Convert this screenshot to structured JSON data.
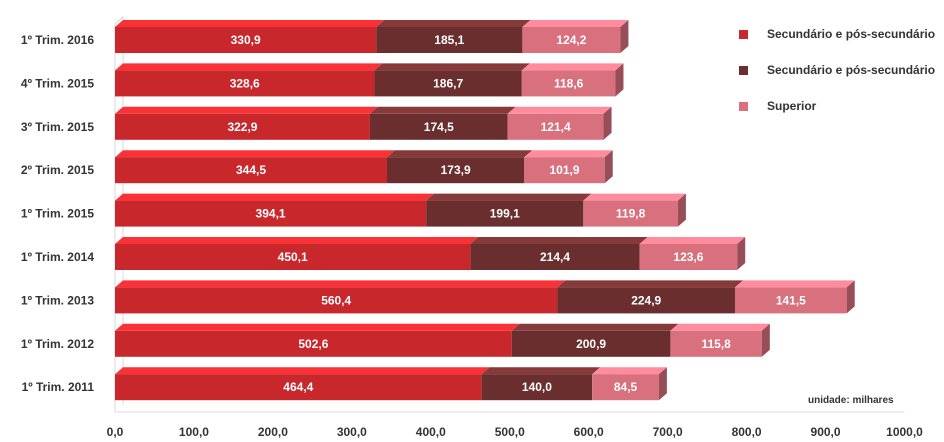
{
  "chart_data": {
    "type": "bar",
    "orientation": "horizontal",
    "stacked": true,
    "style": "3d",
    "categories": [
      "1º Trim. 2016",
      "4º Trim. 2015",
      "3º Trim. 2015",
      "2º Trim. 2015",
      "1º Trim. 2015",
      "1º Trim. 2014",
      "1º Trim. 2013",
      "1º Trim. 2012",
      "1º Trim. 2011"
    ],
    "series": [
      {
        "name": "Secundário e pós-secundário",
        "color": "#c8282c",
        "values": [
          "330,9",
          "328,6",
          "322,9",
          "344,5",
          "394,1",
          "450,1",
          "560,4",
          "502,6",
          "464,4"
        ]
      },
      {
        "name": "Secundário e pós-secundário",
        "color": "#6b2e2e",
        "values": [
          "185,1",
          "186,7",
          "174,5",
          "173,9",
          "199,1",
          "214,4",
          "224,9",
          "200,9",
          "140,0"
        ]
      },
      {
        "name": "Superior",
        "color": "#d9707e",
        "values": [
          "124,2",
          "118,6",
          "121,4",
          "101,9",
          "119,8",
          "123,6",
          "141,5",
          "115,8",
          "84,5"
        ]
      }
    ],
    "x_ticks": [
      "0,0",
      "100,0",
      "200,0",
      "300,0",
      "400,0",
      "500,0",
      "600,0",
      "700,0",
      "800,0",
      "900,0",
      "1000,0"
    ],
    "xlim": [
      0,
      1000
    ],
    "grid": false,
    "legend_position": "top-right",
    "unit_note": "unidade: milhares"
  }
}
